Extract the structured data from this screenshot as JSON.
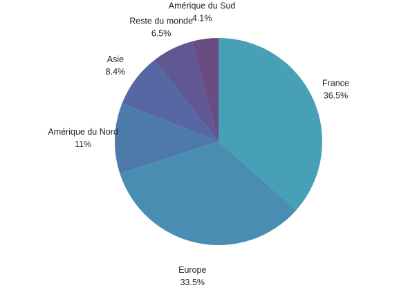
{
  "chart_data": {
    "type": "pie",
    "title": "",
    "start_angle_deg": 0,
    "direction": "clockwise",
    "legend": "none",
    "slices": [
      {
        "label": "France",
        "value": 36.5,
        "value_label": "36.5%",
        "color": "#47a0b6"
      },
      {
        "label": "Europe",
        "value": 33.5,
        "value_label": "33.5%",
        "color": "#4a8db2"
      },
      {
        "label": "Amérique du Nord",
        "value": 11,
        "value_label": "11%",
        "color": "#4e7aaa"
      },
      {
        "label": "Asie",
        "value": 8.4,
        "value_label": "8.4%",
        "color": "#5767a3"
      },
      {
        "label": "Reste du monde",
        "value": 6.5,
        "value_label": "6.5%",
        "color": "#5f5893"
      },
      {
        "label": "Amérique du Sud",
        "value": 4.1,
        "value_label": "4.1%",
        "color": "#684c82"
      }
    ]
  }
}
